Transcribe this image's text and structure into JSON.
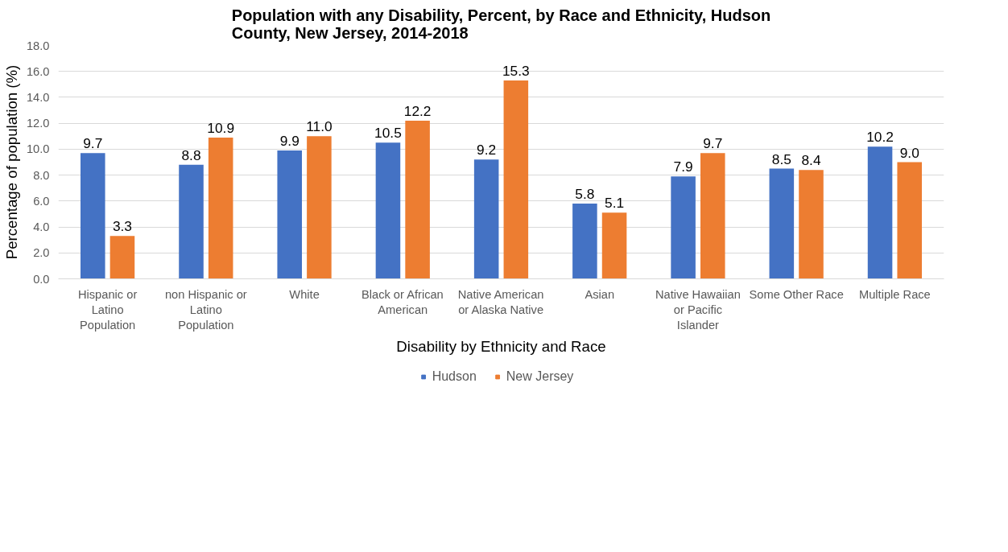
{
  "chart_data": {
    "type": "bar",
    "title": "Population with any Disability, Percent, by Race and Ethnicity, Hudson County, New Jersey, 2014-2018",
    "xlabel": "Disability by Ethnicity and Race",
    "ylabel": "Percentage of population (%)",
    "categories": [
      "Hispanic or Latino Population",
      "non Hispanic or Latino Population",
      "White",
      "Black or African American",
      "Native American or Alaska Native",
      "Asian",
      "Native Hawaiian or Pacific Islander",
      "Some Other Race",
      "Multiple Race"
    ],
    "series": [
      {
        "name": "Hudson",
        "color": "#4472c4",
        "values": [
          9.7,
          8.8,
          9.9,
          10.5,
          9.2,
          5.8,
          7.9,
          8.5,
          10.2
        ],
        "value_labels": [
          "9.7",
          "8.8",
          "9.9",
          "10.5",
          "9.2",
          "5.8",
          "7.9",
          "8.5",
          "10.2"
        ]
      },
      {
        "name": "New Jersey",
        "color": "#ed7d31",
        "values": [
          3.3,
          10.9,
          11.0,
          12.2,
          15.3,
          5.1,
          9.7,
          8.4,
          9.0
        ],
        "value_labels": [
          "3.3",
          "10.9",
          "11.0",
          "12.2",
          "15.3",
          "5.1",
          "9.7",
          "8.4",
          "9.0"
        ]
      }
    ],
    "ylim": [
      0,
      18
    ],
    "yticks": [
      {
        "value": 0,
        "label": "0.0"
      },
      {
        "value": 2,
        "label": "2.0"
      },
      {
        "value": 4,
        "label": "4.0"
      },
      {
        "value": 6,
        "label": "6.0"
      },
      {
        "value": 8,
        "label": "8.0"
      },
      {
        "value": 10,
        "label": "10.0"
      },
      {
        "value": 12,
        "label": "12.0"
      },
      {
        "value": 14,
        "label": "14.0"
      },
      {
        "value": 16,
        "label": "16.0"
      },
      {
        "value": 18,
        "label": "18.0"
      }
    ],
    "grid": "y",
    "legend": "bottom"
  }
}
